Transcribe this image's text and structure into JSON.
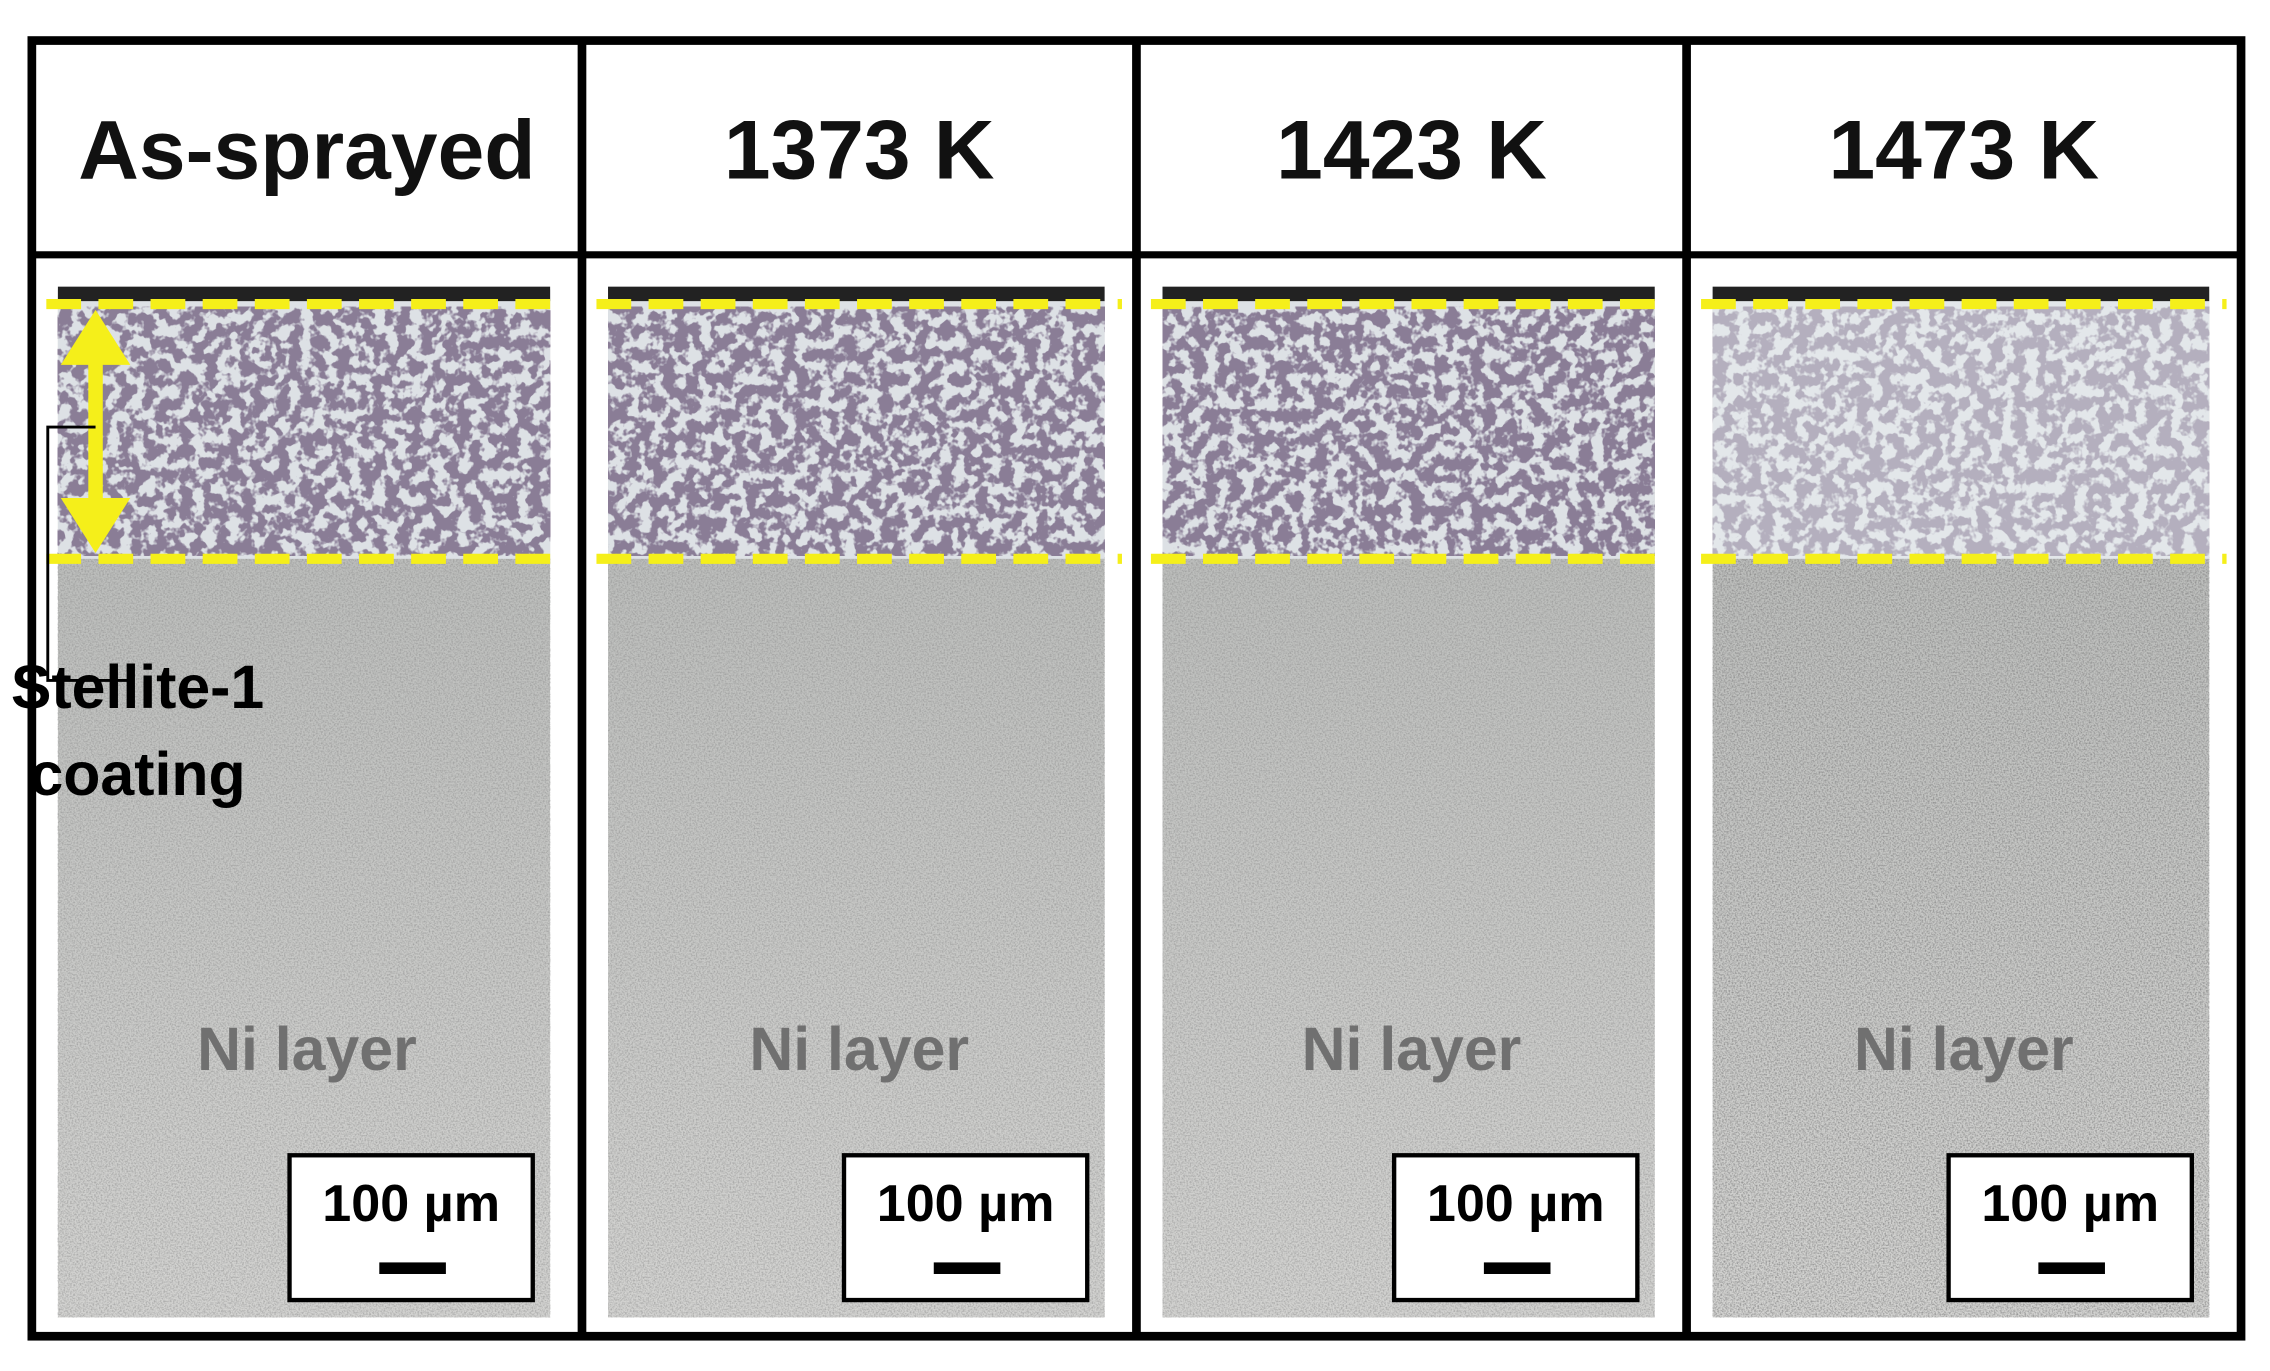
{
  "panels": [
    {
      "header": "As-sprayed",
      "layer_label": "Ni layer",
      "scale_bar": "100 µm"
    },
    {
      "header": "1373 K",
      "layer_label": "Ni layer",
      "scale_bar": "100 µm"
    },
    {
      "header": "1423 K",
      "layer_label": "Ni layer",
      "scale_bar": "100 µm"
    },
    {
      "header": "1473 K",
      "layer_label": "Ni layer",
      "scale_bar": "100 µm"
    }
  ],
  "annotation": {
    "lines": [
      "Stellite-1",
      "coating"
    ]
  }
}
